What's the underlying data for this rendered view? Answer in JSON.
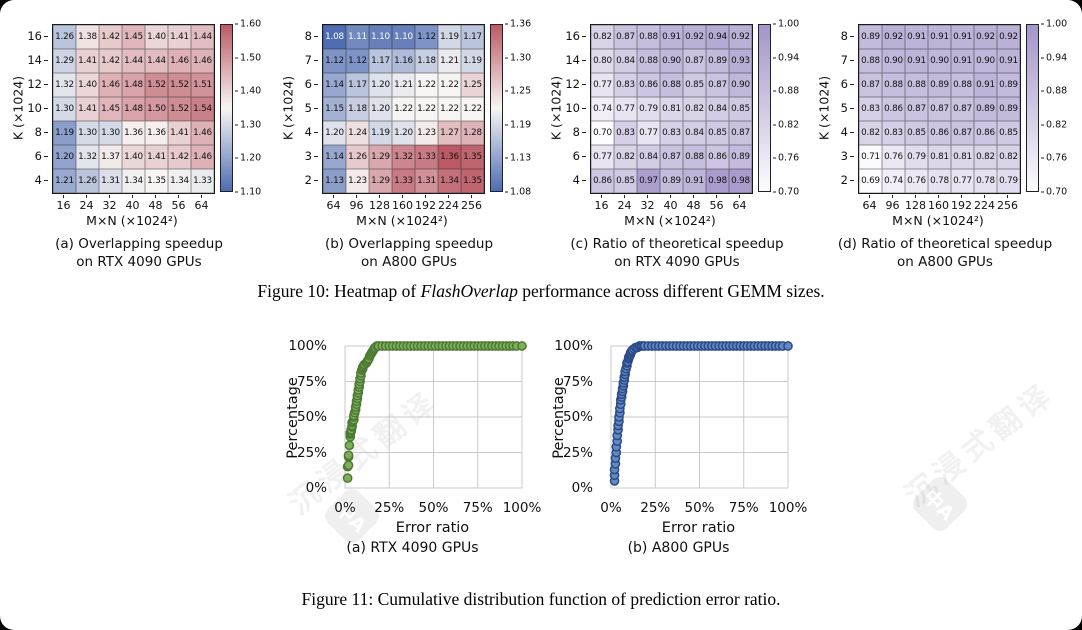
{
  "colors": {
    "div_low": "#4f6db3",
    "div_mid": "#f7f5f4",
    "div_high": "#bb5a66",
    "pur_low": "#fdfcfe",
    "pur_high": "#a395c8",
    "grid_line": "#c9c9c9",
    "cdf_a_fill": "#7fae5a",
    "cdf_a_stroke": "#4c7a33",
    "cdf_b_fill": "#6488c0",
    "cdf_b_stroke": "#2a4a8a"
  },
  "figure10": {
    "caption_prefix": "Figure 10: Heatmap of ",
    "caption_italic": "FlashOverlap",
    "caption_suffix": " performance across different GEMM sizes."
  },
  "figure11": {
    "caption": "Figure 11: Cumulative distribution function of prediction error ratio."
  },
  "watermark": {
    "text": "沉浸式翻译",
    "badge": "中A"
  },
  "chart_data": [
    {
      "type": "heatmap",
      "caption_line1": "(a) Overlapping speedup",
      "caption_line2": "on RTX 4090 GPUs",
      "xlabel": "M×N (×1024²)",
      "ylabel": "K (×1024)",
      "row_labels": [
        "16",
        "14",
        "12",
        "10",
        "8",
        "6",
        "4"
      ],
      "col_labels": [
        "16",
        "24",
        "32",
        "40",
        "48",
        "56",
        "64"
      ],
      "values": [
        [
          1.26,
          1.38,
          1.42,
          1.45,
          1.4,
          1.41,
          1.44
        ],
        [
          1.29,
          1.41,
          1.42,
          1.44,
          1.44,
          1.46,
          1.46
        ],
        [
          1.32,
          1.4,
          1.46,
          1.48,
          1.52,
          1.52,
          1.51
        ],
        [
          1.3,
          1.41,
          1.45,
          1.48,
          1.5,
          1.52,
          1.54
        ],
        [
          1.19,
          1.3,
          1.3,
          1.36,
          1.36,
          1.41,
          1.46
        ],
        [
          1.2,
          1.32,
          1.37,
          1.4,
          1.41,
          1.42,
          1.46
        ],
        [
          1.21,
          1.26,
          1.31,
          1.34,
          1.35,
          1.34,
          1.33
        ]
      ],
      "vmin": 1.1,
      "vmax": 1.6,
      "colormap": "divergent",
      "cbar_ticks": [
        "1.60",
        "1.50",
        "1.40",
        "1.30",
        "1.20",
        "1.10"
      ]
    },
    {
      "type": "heatmap",
      "caption_line1": "(b) Overlapping speedup",
      "caption_line2": "on A800 GPUs",
      "xlabel": "M×N (×1024²)",
      "ylabel": "K (×1024)",
      "row_labels": [
        "8",
        "7",
        "6",
        "5",
        "4",
        "3",
        "2"
      ],
      "col_labels": [
        "64",
        "96",
        "128",
        "160",
        "192",
        "224",
        "256"
      ],
      "values": [
        [
          1.08,
          1.11,
          1.1,
          1.1,
          1.12,
          1.19,
          1.17
        ],
        [
          1.12,
          1.12,
          1.17,
          1.16,
          1.18,
          1.21,
          1.19
        ],
        [
          1.14,
          1.17,
          1.2,
          1.21,
          1.22,
          1.22,
          1.25
        ],
        [
          1.15,
          1.18,
          1.2,
          1.22,
          1.22,
          1.22,
          1.22
        ],
        [
          1.2,
          1.24,
          1.19,
          1.2,
          1.23,
          1.27,
          1.28
        ],
        [
          1.14,
          1.26,
          1.29,
          1.32,
          1.33,
          1.36,
          1.35
        ],
        [
          1.13,
          1.23,
          1.29,
          1.33,
          1.31,
          1.34,
          1.35
        ]
      ],
      "vmin": 1.08,
      "vmax": 1.36,
      "colormap": "divergent",
      "cbar_ticks": [
        "1.36",
        "1.30",
        "1.25",
        "1.19",
        "1.13",
        "1.08"
      ]
    },
    {
      "type": "heatmap",
      "caption_line1": "(c) Ratio of theoretical speedup",
      "caption_line2": "on RTX 4090 GPUs",
      "xlabel": "M×N (×1024²)",
      "ylabel": "K (×1024)",
      "row_labels": [
        "16",
        "14",
        "12",
        "10",
        "8",
        "6",
        "4"
      ],
      "col_labels": [
        "16",
        "24",
        "32",
        "40",
        "48",
        "56",
        "64"
      ],
      "values": [
        [
          0.82,
          0.87,
          0.88,
          0.91,
          0.92,
          0.94,
          0.92
        ],
        [
          0.8,
          0.84,
          0.88,
          0.9,
          0.87,
          0.89,
          0.93
        ],
        [
          0.77,
          0.83,
          0.86,
          0.88,
          0.85,
          0.87,
          0.9
        ],
        [
          0.74,
          0.77,
          0.79,
          0.81,
          0.82,
          0.84,
          0.85
        ],
        [
          0.7,
          0.83,
          0.77,
          0.83,
          0.84,
          0.85,
          0.87
        ],
        [
          0.77,
          0.82,
          0.84,
          0.87,
          0.88,
          0.86,
          0.89
        ],
        [
          0.86,
          0.85,
          0.97,
          0.89,
          0.91,
          0.98,
          0.98
        ]
      ],
      "vmin": 0.7,
      "vmax": 1.0,
      "colormap": "purples",
      "cbar_ticks": [
        "1.00",
        "0.94",
        "0.88",
        "0.82",
        "0.76",
        "0.70"
      ]
    },
    {
      "type": "heatmap",
      "caption_line1": "(d) Ratio of theoretical speedup",
      "caption_line2": "on A800 GPUs",
      "xlabel": "M×N (×1024²)",
      "ylabel": "K (×1024)",
      "row_labels": [
        "8",
        "7",
        "6",
        "5",
        "4",
        "3",
        "2"
      ],
      "col_labels": [
        "64",
        "96",
        "128",
        "160",
        "192",
        "224",
        "256"
      ],
      "values": [
        [
          0.89,
          0.92,
          0.91,
          0.91,
          0.91,
          0.92,
          0.92
        ],
        [
          0.88,
          0.9,
          0.91,
          0.9,
          0.91,
          0.9,
          0.91
        ],
        [
          0.87,
          0.88,
          0.88,
          0.89,
          0.88,
          0.91,
          0.89
        ],
        [
          0.83,
          0.86,
          0.87,
          0.87,
          0.87,
          0.89,
          0.89
        ],
        [
          0.82,
          0.83,
          0.85,
          0.86,
          0.87,
          0.86,
          0.85
        ],
        [
          0.71,
          0.76,
          0.79,
          0.81,
          0.81,
          0.82,
          0.82
        ],
        [
          0.69,
          0.74,
          0.76,
          0.78,
          0.77,
          0.78,
          0.79
        ]
      ],
      "vmin": 0.7,
      "vmax": 1.0,
      "colormap": "purples",
      "cbar_ticks": [
        "1.00",
        "0.94",
        "0.88",
        "0.82",
        "0.76",
        "0.70"
      ]
    },
    {
      "type": "scatter",
      "caption": "(a) RTX 4090 GPUs",
      "xlabel": "Error ratio",
      "ylabel": "Percentage",
      "xticks": [
        "0%",
        "25%",
        "50%",
        "75%",
        "100%"
      ],
      "yticks": [
        "100%",
        "75%",
        "50%",
        "25%",
        "0%"
      ],
      "xlim": [
        0,
        100
      ],
      "ylim": [
        0,
        100
      ],
      "points": [
        [
          1.5,
          7
        ],
        [
          1.5,
          15
        ],
        [
          2,
          16
        ],
        [
          2,
          22
        ],
        [
          2,
          23
        ],
        [
          2.5,
          30
        ],
        [
          3,
          36
        ],
        [
          3,
          38
        ],
        [
          3,
          39
        ],
        [
          3.5,
          40
        ],
        [
          3.5,
          41
        ],
        [
          4,
          43
        ],
        [
          4,
          44
        ],
        [
          4,
          46
        ],
        [
          4.5,
          47
        ],
        [
          5,
          48
        ],
        [
          5,
          50
        ],
        [
          5,
          51
        ],
        [
          5.5,
          53
        ],
        [
          6,
          55
        ],
        [
          6,
          57
        ],
        [
          6.5,
          59
        ],
        [
          6.5,
          61
        ],
        [
          7,
          63
        ],
        [
          7,
          65
        ],
        [
          7.5,
          67
        ],
        [
          7.5,
          69
        ],
        [
          8,
          71
        ],
        [
          8,
          73
        ],
        [
          8.5,
          75
        ],
        [
          8.5,
          77
        ],
        [
          9,
          79
        ],
        [
          9,
          81
        ],
        [
          9.5,
          83
        ],
        [
          10,
          84
        ],
        [
          10,
          85
        ],
        [
          10.5,
          86
        ],
        [
          11,
          87
        ],
        [
          12,
          88
        ],
        [
          12.5,
          89
        ],
        [
          13,
          90
        ],
        [
          13.5,
          91
        ],
        [
          14,
          93
        ],
        [
          14.5,
          94
        ],
        [
          15,
          95
        ],
        [
          15.5,
          96
        ],
        [
          16,
          97
        ],
        [
          16.5,
          98
        ],
        [
          17,
          99
        ],
        [
          18,
          100
        ],
        [
          19,
          100
        ],
        [
          21,
          100
        ],
        [
          23,
          100
        ],
        [
          25,
          100
        ],
        [
          27,
          100
        ],
        [
          29,
          100
        ],
        [
          31,
          100
        ],
        [
          33,
          100
        ],
        [
          35,
          100
        ],
        [
          37,
          100
        ],
        [
          39,
          100
        ],
        [
          41,
          100
        ],
        [
          43,
          100
        ],
        [
          45,
          100
        ],
        [
          47,
          100
        ],
        [
          49,
          100
        ],
        [
          51,
          100
        ],
        [
          53,
          100
        ],
        [
          55,
          100
        ],
        [
          57,
          100
        ],
        [
          59,
          100
        ],
        [
          61,
          100
        ],
        [
          63,
          100
        ],
        [
          65,
          100
        ],
        [
          67,
          100
        ],
        [
          69,
          100
        ],
        [
          71,
          100
        ],
        [
          73,
          100
        ],
        [
          75,
          100
        ],
        [
          77,
          100
        ],
        [
          79,
          100
        ],
        [
          81,
          100
        ],
        [
          83,
          100
        ],
        [
          85,
          100
        ],
        [
          87,
          100
        ],
        [
          89,
          100
        ],
        [
          91,
          100
        ],
        [
          93,
          100
        ],
        [
          95,
          100
        ],
        [
          97,
          100
        ],
        [
          100,
          100
        ]
      ]
    },
    {
      "type": "scatter",
      "caption": "(b) A800 GPUs",
      "xlabel": "Error ratio",
      "ylabel": "Percentage",
      "xticks": [
        "0%",
        "25%",
        "50%",
        "75%",
        "100%"
      ],
      "yticks": [
        "100%",
        "75%",
        "50%",
        "25%",
        "0%"
      ],
      "xlim": [
        0,
        100
      ],
      "ylim": [
        0,
        100
      ],
      "points": [
        [
          2,
          5
        ],
        [
          2,
          9
        ],
        [
          2,
          13
        ],
        [
          2.5,
          17
        ],
        [
          2.5,
          21
        ],
        [
          3,
          25
        ],
        [
          3,
          29
        ],
        [
          3.5,
          33
        ],
        [
          3.5,
          37
        ],
        [
          4,
          41
        ],
        [
          4,
          44
        ],
        [
          4.5,
          47
        ],
        [
          4.5,
          50
        ],
        [
          5,
          53
        ],
        [
          5,
          56
        ],
        [
          5.5,
          59
        ],
        [
          5.5,
          62
        ],
        [
          6,
          64
        ],
        [
          6,
          66
        ],
        [
          6.5,
          68
        ],
        [
          6.5,
          70
        ],
        [
          7,
          72
        ],
        [
          7,
          74
        ],
        [
          7.5,
          76
        ],
        [
          7.5,
          78
        ],
        [
          8,
          80
        ],
        [
          8,
          82
        ],
        [
          8.5,
          84
        ],
        [
          9,
          86
        ],
        [
          9,
          88
        ],
        [
          9.5,
          89
        ],
        [
          10,
          91
        ],
        [
          10,
          92
        ],
        [
          10.5,
          93
        ],
        [
          11,
          94
        ],
        [
          11,
          95
        ],
        [
          11.5,
          96
        ],
        [
          12,
          97
        ],
        [
          13,
          98
        ],
        [
          14,
          99
        ],
        [
          15,
          99
        ],
        [
          16,
          100
        ],
        [
          17,
          100
        ],
        [
          18,
          100
        ],
        [
          19,
          100
        ],
        [
          21,
          100
        ],
        [
          23,
          100
        ],
        [
          25,
          100
        ],
        [
          27,
          100
        ],
        [
          29,
          100
        ],
        [
          31,
          100
        ],
        [
          33,
          100
        ],
        [
          35,
          100
        ],
        [
          37,
          100
        ],
        [
          39,
          100
        ],
        [
          41,
          100
        ],
        [
          43,
          100
        ],
        [
          45,
          100
        ],
        [
          47,
          100
        ],
        [
          49,
          100
        ],
        [
          51,
          100
        ],
        [
          53,
          100
        ],
        [
          55,
          100
        ],
        [
          57,
          100
        ],
        [
          59,
          100
        ],
        [
          61,
          100
        ],
        [
          63,
          100
        ],
        [
          65,
          100
        ],
        [
          67,
          100
        ],
        [
          69,
          100
        ],
        [
          71,
          100
        ],
        [
          73,
          100
        ],
        [
          75,
          100
        ],
        [
          77,
          100
        ],
        [
          79,
          100
        ],
        [
          81,
          100
        ],
        [
          83,
          100
        ],
        [
          85,
          100
        ],
        [
          87,
          100
        ],
        [
          89,
          100
        ],
        [
          91,
          100
        ],
        [
          93,
          100
        ],
        [
          95,
          100
        ],
        [
          97,
          100
        ],
        [
          100,
          100
        ]
      ]
    }
  ]
}
